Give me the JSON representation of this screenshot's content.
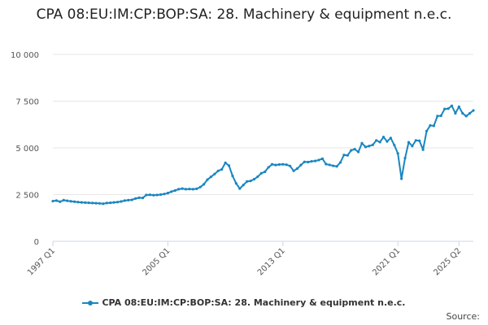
{
  "chart_data": {
    "type": "line",
    "title": "CPA 08:EU:IM:CP:BOP:SA: 28. Machinery & equipment n.e.c.",
    "xlabel": "",
    "ylabel": "",
    "ylim": [
      0,
      10000
    ],
    "yticks": [
      "0",
      "2 500",
      "5 000",
      "7 500",
      "10 000"
    ],
    "ytick_values": [
      0,
      2500,
      5000,
      7500,
      10000
    ],
    "xticks": [
      "1997 Q1",
      "2005 Q1",
      "2013 Q1",
      "2021 Q1",
      "2025 Q2"
    ],
    "xtick_index": [
      0,
      32,
      64,
      96,
      113
    ],
    "grid": true,
    "legend_position": "bottom",
    "series": [
      {
        "name": "CPA 08:EU:IM:CP:BOP:SA: 28. Machinery & equipment n.e.c.",
        "color": "#1a86c0",
        "values": [
          2150,
          2180,
          2120,
          2200,
          2170,
          2140,
          2120,
          2100,
          2080,
          2070,
          2060,
          2050,
          2040,
          2030,
          2010,
          2050,
          2060,
          2080,
          2100,
          2130,
          2180,
          2200,
          2220,
          2290,
          2330,
          2320,
          2480,
          2490,
          2470,
          2480,
          2500,
          2530,
          2580,
          2660,
          2720,
          2790,
          2820,
          2790,
          2800,
          2790,
          2810,
          2900,
          3050,
          3300,
          3450,
          3600,
          3770,
          3850,
          4200,
          4050,
          3500,
          3100,
          2820,
          3010,
          3200,
          3230,
          3320,
          3460,
          3640,
          3720,
          3960,
          4120,
          4080,
          4110,
          4120,
          4100,
          4030,
          3770,
          3890,
          4080,
          4250,
          4240,
          4280,
          4300,
          4350,
          4420,
          4130,
          4090,
          4040,
          4010,
          4220,
          4620,
          4600,
          4870,
          4930,
          4780,
          5250,
          5050,
          5100,
          5160,
          5400,
          5310,
          5580,
          5340,
          5530,
          5150,
          4700,
          3350,
          4450,
          5300,
          5100,
          5400,
          5380,
          4900,
          5900,
          6200,
          6180,
          6700,
          6720,
          7080,
          7100,
          7250,
          6850,
          7200,
          6850,
          6700,
          6850,
          7000
        ]
      }
    ]
  },
  "legend": {
    "label": "CPA 08:EU:IM:CP:BOP:SA: 28. Machinery & equipment n.e.c."
  },
  "source_label": "Source:"
}
